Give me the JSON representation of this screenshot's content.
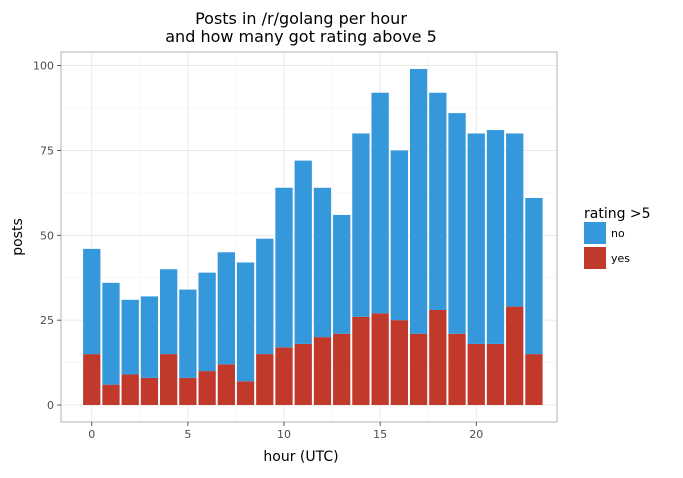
{
  "chart_data": {
    "type": "bar",
    "stacked": true,
    "title_lines": [
      "Posts in /r/golang per hour",
      "and how many got rating above 5"
    ],
    "xlabel": "hour (UTC)",
    "ylabel": "posts",
    "x": [
      0,
      1,
      2,
      3,
      4,
      5,
      6,
      7,
      8,
      9,
      10,
      11,
      12,
      13,
      14,
      15,
      16,
      17,
      18,
      19,
      20,
      21,
      22,
      23
    ],
    "xticks": [
      0,
      5,
      10,
      15,
      20
    ],
    "yticks": [
      0,
      25,
      50,
      75,
      100
    ],
    "xlim": [
      -1.6,
      24.2
    ],
    "ylim": [
      -5,
      104
    ],
    "grid": true,
    "legend": {
      "title": "rating >5",
      "position": "right"
    },
    "series": [
      {
        "name": "yes",
        "color": "#c0392b",
        "values": [
          15,
          6,
          9,
          8,
          15,
          8,
          10,
          12,
          7,
          15,
          17,
          18,
          20,
          21,
          26,
          27,
          25,
          21,
          28,
          21,
          18,
          18,
          29,
          15
        ]
      },
      {
        "name": "no",
        "color": "#3498db",
        "values": [
          31,
          30,
          22,
          24,
          25,
          26,
          29,
          33,
          35,
          34,
          47,
          54,
          44,
          35,
          54,
          65,
          50,
          78,
          64,
          65,
          62,
          63,
          51,
          46
        ]
      }
    ],
    "totals": [
      46,
      36,
      31,
      32,
      40,
      34,
      39,
      45,
      42,
      49,
      64,
      72,
      64,
      56,
      80,
      92,
      75,
      99,
      92,
      86,
      80,
      81,
      80,
      61
    ]
  }
}
